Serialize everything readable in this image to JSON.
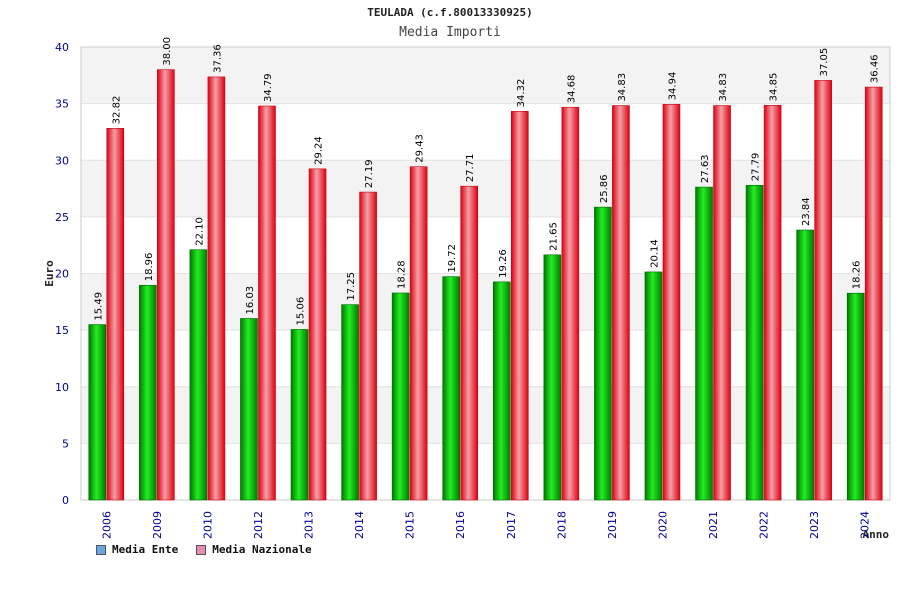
{
  "title": "TEULADA (c.f.80013330925)",
  "subtitle": "Media Importi",
  "colors": {
    "ente": "#00aa00",
    "nazionale": "#ee1c2c",
    "legend_ente": "#6aa6e6",
    "legend_nazionale": "#e48fb0",
    "axis_text": "#000099"
  },
  "legend": [
    {
      "label": "Media Ente"
    },
    {
      "label": "Media Nazionale"
    }
  ],
  "chart_data": {
    "type": "bar",
    "title": "Media Importi",
    "xlabel": "Anno",
    "ylabel": "Euro",
    "ylim": [
      0,
      40
    ],
    "yticks": [
      0,
      5,
      10,
      15,
      20,
      25,
      30,
      35,
      40
    ],
    "categories": [
      "2006",
      "2009",
      "2010",
      "2012",
      "2013",
      "2014",
      "2015",
      "2016",
      "2017",
      "2018",
      "2019",
      "2020",
      "2021",
      "2022",
      "2023",
      "2024"
    ],
    "series": [
      {
        "name": "Media Ente",
        "values": [
          15.49,
          18.96,
          22.1,
          16.03,
          15.06,
          17.25,
          18.28,
          19.72,
          19.26,
          21.65,
          25.86,
          20.14,
          27.63,
          27.79,
          23.84,
          18.26
        ],
        "labels": [
          "15.49",
          "18.96",
          "22.10",
          "16.03",
          "15.06",
          "17.25",
          "18.28",
          "19.72",
          "19.26",
          "21.65",
          "25.86",
          "20.14",
          "27.63",
          "27.79",
          "23.84",
          "18.26"
        ]
      },
      {
        "name": "Media Nazionale",
        "values": [
          32.82,
          38.0,
          37.36,
          34.79,
          29.24,
          27.19,
          29.43,
          27.71,
          34.32,
          34.68,
          34.83,
          34.94,
          34.83,
          34.85,
          37.05,
          36.46
        ],
        "labels": [
          "32.82",
          "38.00",
          "37.36",
          "34.79",
          "29.24",
          "27.19",
          "29.43",
          "27.71",
          "34.32",
          "34.68",
          "34.83",
          "34.94",
          "34.83",
          "34.85",
          "37.05",
          "36.46"
        ]
      }
    ]
  }
}
